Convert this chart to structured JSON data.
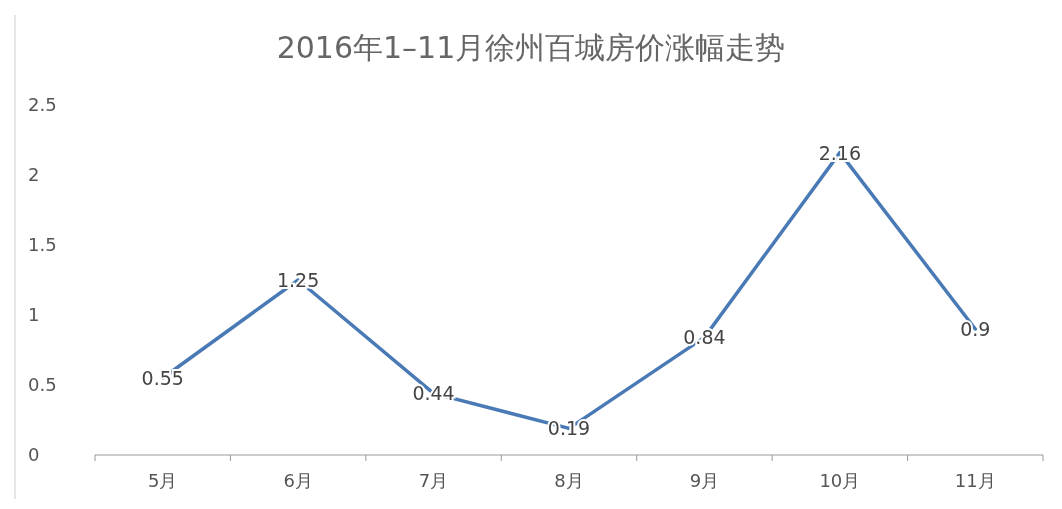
{
  "chart_data": {
    "type": "line",
    "title": "2016年1–11月徐州百城房价涨幅走势",
    "categories": [
      "5月",
      "6月",
      "7月",
      "8月",
      "9月",
      "10月",
      "11月"
    ],
    "values": [
      0.55,
      1.25,
      0.44,
      0.19,
      0.84,
      2.16,
      0.9
    ],
    "color": "#4a7ab5",
    "ylim": [
      0,
      2.5
    ],
    "yticks": [
      0,
      0.5,
      1,
      1.5,
      2,
      2.5
    ],
    "data_labels": true,
    "marker": "none",
    "line_style": "solid"
  }
}
